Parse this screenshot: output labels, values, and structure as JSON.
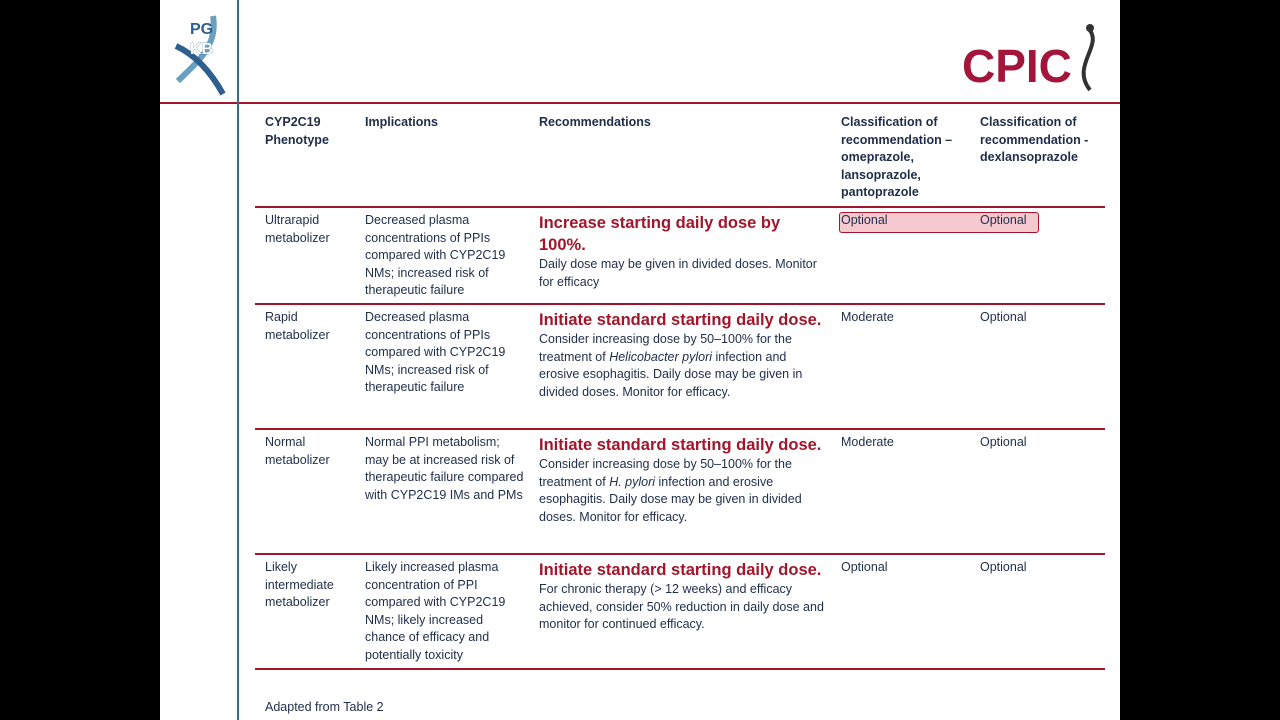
{
  "logos": {
    "left": [
      "PG",
      "KB"
    ],
    "right": "CPIC"
  },
  "table": {
    "columns": [
      "CYP2C19 Phenotype",
      "Implications",
      "Recommendations",
      "Classification of recommendation – omeprazole, lansoprazole, pantoprazole",
      "Classification of recommendation - dexlansoprazole"
    ],
    "rows": [
      {
        "phenotype": "Ultrarapid metabolizer",
        "implications": "Decreased plasma concentrations of PPIs compared with CYP2C19 NMs; increased risk of therapeutic failure",
        "headline": "Increase starting daily dose by 100%.",
        "detail": [
          {
            "text": "Daily dose may be given in divided doses. Monitor for efficacy",
            "italic": false
          }
        ],
        "class1": "Optional",
        "class2": "Optional",
        "highlighted": true
      },
      {
        "phenotype": "Rapid metabolizer",
        "implications": "Decreased plasma concentrations of PPIs compared with CYP2C19 NMs; increased risk of therapeutic failure",
        "headline": "Initiate standard starting daily dose.",
        "detail": [
          {
            "text": "Consider increasing dose by 50–100% for the treatment of ",
            "italic": false
          },
          {
            "text": "Helicobacter pylori",
            "italic": true
          },
          {
            "text": " infection and erosive esophagitis. Daily dose may be given in divided doses. Monitor for efficacy.",
            "italic": false
          }
        ],
        "class1": "Moderate",
        "class2": "Optional",
        "highlighted": false
      },
      {
        "phenotype": "Normal metabolizer",
        "implications": "Normal PPI metabolism; may be at increased risk of therapeutic failure compared with CYP2C19 IMs and PMs",
        "headline": "Initiate standard starting daily dose.",
        "detail": [
          {
            "text": "Consider increasing dose by 50–100% for the treatment of ",
            "italic": false
          },
          {
            "text": "H. pylori",
            "italic": true
          },
          {
            "text": " infection and erosive esophagitis. Daily dose may be given in divided doses. Monitor for efficacy.",
            "italic": false
          }
        ],
        "class1": "Moderate",
        "class2": "Optional",
        "highlighted": false
      },
      {
        "phenotype": "Likely intermediate metabolizer",
        "implications": "Likely increased plasma concentration of PPI compared with CYP2C19 NMs; likely increased chance of efficacy and potentially toxicity",
        "headline": "Initiate standard starting daily dose.",
        "detail": [
          {
            "text": "For chronic therapy (> 12 weeks) and efficacy achieved, consider 50% reduction in daily dose and monitor for continued efficacy.",
            "italic": false
          }
        ],
        "class1": "Optional",
        "class2": "Optional",
        "highlighted": false
      }
    ]
  },
  "footer": "Adapted from Table 2"
}
